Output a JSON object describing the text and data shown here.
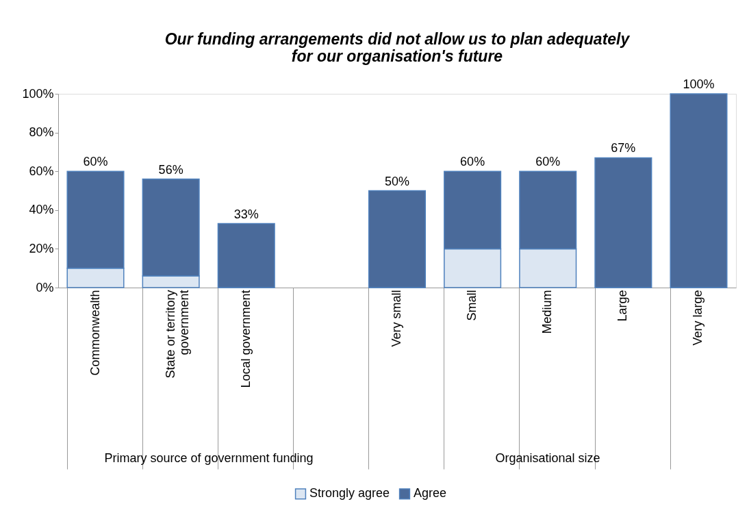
{
  "chart_data": {
    "type": "bar",
    "stacked": true,
    "title": "Our funding arrangements did not allow us to plan adequately for our organisation's future",
    "categories": [
      "Commonwealth",
      "State or territory government",
      "Local government",
      null,
      "Very small",
      "Small",
      "Medium",
      "Large",
      "Very large"
    ],
    "series": [
      {
        "name": "Strongly agree",
        "color": "#dce6f2",
        "values": [
          10,
          6,
          0,
          null,
          0,
          20,
          20,
          0,
          0
        ]
      },
      {
        "name": "Agree",
        "color": "#4a6a9a",
        "values": [
          50,
          50,
          33,
          null,
          50,
          40,
          40,
          67,
          100
        ]
      }
    ],
    "totals": [
      "60%",
      "56%",
      "33%",
      null,
      "50%",
      "60%",
      "60%",
      "67%",
      "100%"
    ],
    "ylim": [
      0,
      100
    ],
    "yticks": [
      {
        "value": 0,
        "label": "0%"
      },
      {
        "value": 20,
        "label": "20%"
      },
      {
        "value": 40,
        "label": "40%"
      },
      {
        "value": 60,
        "label": "60%"
      },
      {
        "value": 80,
        "label": "80%"
      },
      {
        "value": 100,
        "label": "100%"
      }
    ],
    "annotations": [
      "Primary source of government funding",
      "Organisational size"
    ],
    "legend": "bottom",
    "grid": false
  }
}
